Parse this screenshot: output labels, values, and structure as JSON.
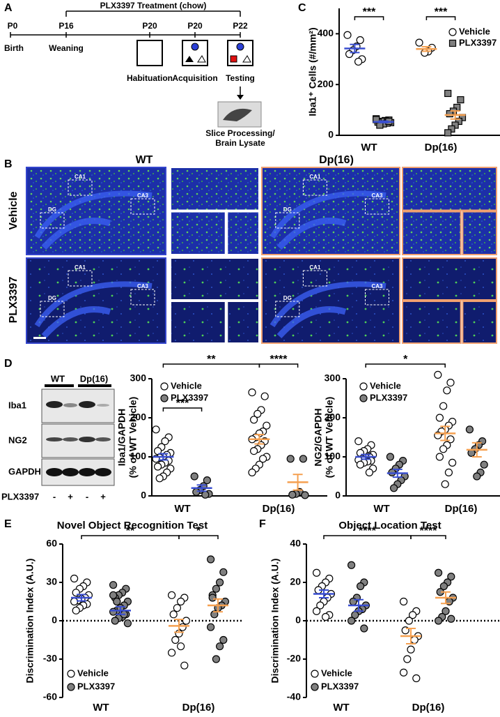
{
  "panel_labels": [
    "A",
    "B",
    "C",
    "D",
    "E",
    "F"
  ],
  "timeline": {
    "treatment": "PLX3397 Treatment (chow)",
    "ages": [
      "P0",
      "P16",
      "P20",
      "P20",
      "P22"
    ],
    "milestones": [
      "Birth",
      "Weaning"
    ],
    "phases": [
      "Habituation",
      "Acquisition",
      "Testing"
    ],
    "outcome": [
      "Slice Processing/",
      "Brain Lysate"
    ]
  },
  "micrographs": {
    "columns": [
      "WT",
      "Dp(16)"
    ],
    "rows": [
      "Vehicle",
      "PLX3397"
    ],
    "regions": [
      "CA1",
      "CA3",
      "DG"
    ]
  },
  "blot": {
    "groups": [
      "WT",
      "Dp(16)"
    ],
    "proteins": [
      "Iba1",
      "NG2",
      "GAPDH"
    ],
    "treatment": "PLX3397",
    "lanes": [
      "-",
      "+",
      "-",
      "+"
    ]
  },
  "chart_data": [
    {
      "type": "dot",
      "y_label": [
        "Iba1⁺ Cells (#/mm²)"
      ],
      "categories": [
        "WT",
        "Dp(16)"
      ],
      "ylim": [
        0,
        500
      ],
      "yticks": [
        0,
        200,
        400
      ],
      "zero_line": false,
      "legend": "upper right",
      "mean_colors": [
        "#3a4fd0",
        "#f5a050"
      ],
      "series": [
        {
          "name": "Vehicle",
          "marker": "circle",
          "color": "#ffffff",
          "values": [
            [
              395,
              375,
              350,
              335,
              320,
              300,
              290
            ],
            [
              365,
              345,
              330,
              325
            ]
          ],
          "means": [
            342,
            340
          ],
          "sems": [
            16,
            9
          ]
        },
        {
          "name": "PLX3397",
          "marker": "square",
          "color": "#808080",
          "values": [
            [
              65,
              60,
              58,
              55,
              52,
              50,
              48,
              45,
              40,
              62,
              55
            ],
            [
              165,
              140,
              110,
              95,
              85,
              70,
              55,
              40,
              25,
              10
            ]
          ],
          "means": [
            53,
            80
          ],
          "sems": [
            3,
            16
          ]
        }
      ],
      "significance": [
        {
          "label": "***",
          "groups": [
            0,
            1
          ]
        },
        {
          "label": "***",
          "groups": [
            2,
            3
          ]
        }
      ]
    },
    {
      "type": "dot",
      "y_label": [
        "Iba1/GAPDH",
        "(% of WT Vehicle)"
      ],
      "categories": [
        "WT",
        "Dp(16)"
      ],
      "ylim": [
        0,
        300
      ],
      "yticks": [
        0,
        100,
        200,
        300
      ],
      "zero_line": false,
      "legend": "upper left",
      "mean_colors": [
        "#3a4fd0",
        "#f5a050"
      ],
      "series": [
        {
          "name": "Vehicle",
          "marker": "circle",
          "color": "#ffffff",
          "values": [
            [
              170,
              150,
              140,
              125,
              115,
              110,
              105,
              100,
              98,
              95,
              90,
              85,
              80,
              75,
              70,
              60,
              50,
              45
            ],
            [
              265,
              255,
              220,
              210,
              195,
              180,
              165,
              160,
              150,
              145,
              140,
              130,
              120,
              115,
              100,
              95,
              80,
              70,
              60
            ]
          ],
          "means": [
            100,
            145
          ],
          "sems": [
            8,
            12
          ]
        },
        {
          "name": "PLX3397",
          "marker": "circle",
          "color": "#808080",
          "values": [
            [
              50,
              40,
              25,
              15,
              10,
              5,
              3
            ],
            [
              95,
              95,
              10,
              5,
              3,
              2
            ]
          ],
          "means": [
            20,
            35
          ],
          "sems": [
            8,
            20
          ]
        }
      ],
      "significance": [
        {
          "label": "**",
          "groups": [
            0,
            2
          ]
        },
        {
          "label": "****",
          "groups": [
            2,
            3
          ]
        },
        {
          "label": "***",
          "groups": [
            0,
            1
          ]
        }
      ]
    },
    {
      "type": "dot",
      "y_label": [
        "NG2/GAPDH",
        "(% of WT Vehicle)"
      ],
      "categories": [
        "WT",
        "Dp(16)"
      ],
      "ylim": [
        0,
        300
      ],
      "yticks": [
        0,
        100,
        200,
        300
      ],
      "zero_line": false,
      "legend": "upper left",
      "mean_colors": [
        "#3a4fd0",
        "#f5a050"
      ],
      "series": [
        {
          "name": "Vehicle",
          "marker": "circle",
          "color": "#ffffff",
          "values": [
            [
              140,
              130,
              120,
              115,
              110,
              105,
              100,
              98,
              95,
              92,
              90,
              88,
              85,
              80,
              70,
              60
            ],
            [
              310,
              290,
              270,
              230,
              200,
              190,
              180,
              170,
              165,
              155,
              145,
              130,
              120,
              100,
              85,
              60,
              30
            ]
          ],
          "means": [
            100,
            160
          ],
          "sems": [
            6,
            18
          ]
        },
        {
          "name": "PLX3397",
          "marker": "circle",
          "color": "#808080",
          "values": [
            [
              100,
              90,
              80,
              70,
              60,
              50,
              40,
              30,
              20
            ],
            [
              170,
              140,
              130,
              120,
              110,
              80,
              60,
              50
            ]
          ],
          "means": [
            58,
            118
          ],
          "sems": [
            10,
            18
          ]
        }
      ],
      "significance": [
        {
          "label": "*",
          "groups": [
            0,
            2
          ]
        }
      ]
    },
    {
      "type": "dot",
      "title": "Novel Object Recognition Test",
      "y_label": [
        "Discrimination Index (A.U.)"
      ],
      "categories": [
        "WT",
        "Dp(16)"
      ],
      "ylim": [
        -60,
        60
      ],
      "yticks": [
        -60,
        -30,
        0,
        30,
        60
      ],
      "zero_line": true,
      "legend": "lower left",
      "mean_colors": [
        "#3a4fd0",
        "#f5a050"
      ],
      "series": [
        {
          "name": "Vehicle",
          "marker": "circle",
          "color": "#ffffff",
          "values": [
            [
              33,
              30,
              27,
              25,
              22,
              20,
              18,
              17,
              16,
              15,
              13,
              12,
              10,
              8
            ],
            [
              20,
              18,
              15,
              10,
              5,
              0,
              -5,
              -10,
              -15,
              -25,
              -35,
              -20
            ]
          ],
          "means": [
            18,
            -4
          ],
          "sems": [
            2.5,
            5
          ]
        },
        {
          "name": "PLX3397",
          "marker": "circle",
          "color": "#808080",
          "values": [
            [
              28,
              25,
              22,
              20,
              18,
              15,
              12,
              10,
              8,
              7,
              5,
              3,
              2,
              0,
              -2,
              5,
              10,
              15,
              20
            ],
            [
              48,
              38,
              30,
              25,
              20,
              15,
              12,
              10,
              5,
              -5,
              -15,
              -20,
              -30,
              18
            ]
          ],
          "means": [
            8,
            12
          ],
          "sems": [
            3,
            5
          ]
        }
      ],
      "significance": [
        {
          "label": "**",
          "groups": [
            0,
            2
          ]
        },
        {
          "label": "*",
          "groups": [
            2,
            3
          ]
        }
      ]
    },
    {
      "type": "dot",
      "title": "Object Location Test",
      "y_label": [
        "Discrimination Index (A.U.)"
      ],
      "categories": [
        "WT",
        "Dp(16)"
      ],
      "ylim": [
        -40,
        40
      ],
      "yticks": [
        -40,
        -20,
        0,
        20,
        40
      ],
      "zero_line": true,
      "legend": "lower left",
      "mean_colors": [
        "#3a4fd0",
        "#f5a050"
      ],
      "series": [
        {
          "name": "Vehicle",
          "marker": "circle",
          "color": "#ffffff",
          "values": [
            [
              25,
              22,
              20,
              18,
              16,
              14,
              12,
              10,
              8,
              5,
              3,
              2
            ],
            [
              10,
              5,
              3,
              0,
              -5,
              -8,
              -10,
              -15,
              -20,
              -27,
              -30
            ]
          ],
          "means": [
            14,
            -8
          ],
          "sems": [
            2,
            4
          ]
        },
        {
          "name": "PLX3397",
          "marker": "circle",
          "color": "#808080",
          "values": [
            [
              29,
              20,
              18,
              12,
              10,
              8,
              6,
              5,
              3,
              0,
              -4
            ],
            [
              25,
              23,
              20,
              18,
              15,
              12,
              10,
              5,
              2,
              0,
              1
            ]
          ],
          "means": [
            8,
            12
          ],
          "sems": [
            3,
            3
          ]
        }
      ],
      "significance": [
        {
          "label": "****",
          "groups": [
            0,
            2
          ]
        },
        {
          "label": "****",
          "groups": [
            2,
            3
          ]
        }
      ]
    }
  ]
}
